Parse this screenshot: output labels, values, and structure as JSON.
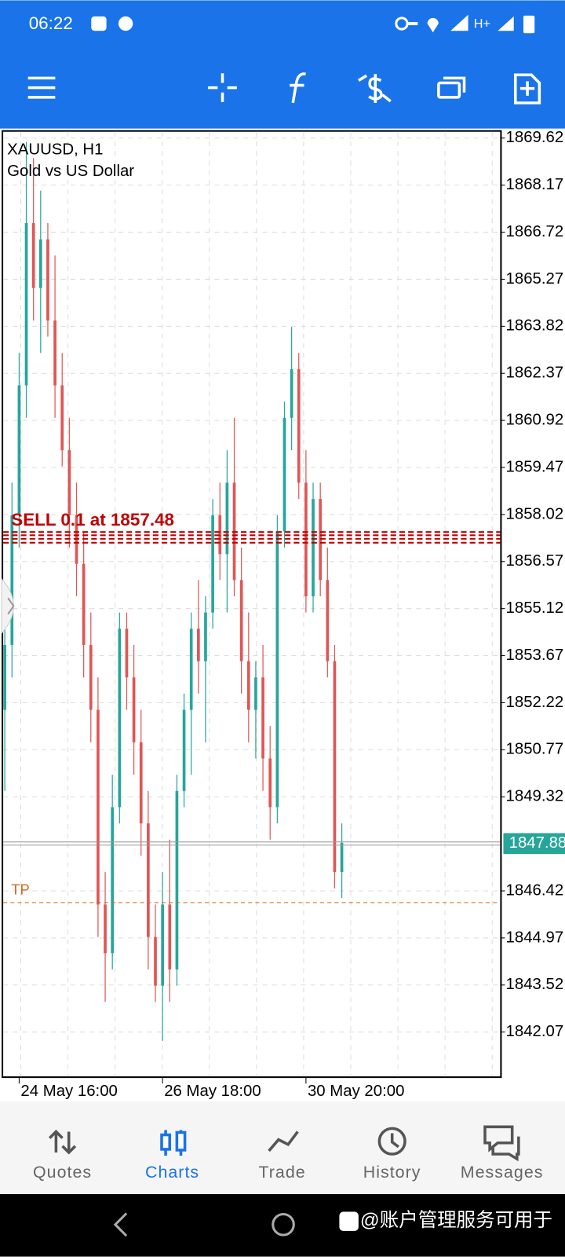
{
  "status_bar": {
    "time": "06:22",
    "network": "H+"
  },
  "chart_data": {
    "type": "candlestick",
    "title": "XAUUSD, H1",
    "subtitle": "Gold vs US Dollar",
    "categories": [
      null,
      null,
      "24 May 16:00",
      null,
      null,
      null,
      null,
      null,
      null,
      null,
      null,
      null,
      null,
      null,
      null,
      null,
      null,
      null,
      null,
      null,
      null,
      null,
      "26 May 18:00",
      null,
      null,
      null,
      null,
      null,
      null,
      null,
      null,
      null,
      null,
      null,
      null,
      null,
      null,
      null,
      null,
      null,
      null,
      null,
      "30 May 20:00",
      null,
      null,
      null,
      null,
      null
    ],
    "open": [
      1852,
      1854,
      1858,
      1862,
      1867,
      1865,
      1866.5,
      1864,
      1862,
      1860,
      1858,
      1856.5,
      1854,
      1852,
      1846,
      1844.5,
      1849,
      1854.5,
      1853,
      1851,
      1848.5,
      1845,
      1843.5,
      1846,
      1844,
      1849.5,
      1852,
      1854.5,
      1853.5,
      1855,
      1858,
      1856.8,
      1859,
      1856,
      1853.5,
      1852,
      1853,
      1850.5,
      1849,
      1857.5,
      1861,
      1862.5,
      1859,
      1855.5,
      1858.5,
      1856,
      1853.5,
      1847
    ],
    "high": [
      1855,
      1859,
      1863,
      1869.5,
      1869,
      1868,
      1867,
      1866,
      1863,
      1861,
      1859,
      1857.5,
      1855,
      1853,
      1847,
      1850,
      1855,
      1855,
      1854,
      1852,
      1849.5,
      1846,
      1847,
      1848,
      1850,
      1852.5,
      1855,
      1856,
      1855.5,
      1858.5,
      1859,
      1860,
      1861,
      1857,
      1855,
      1853.5,
      1854,
      1851.5,
      1858,
      1861.5,
      1863.8,
      1863,
      1860,
      1859,
      1859,
      1857,
      1854,
      1848.5
    ],
    "low": [
      1849.5,
      1853,
      1857,
      1861,
      1864,
      1863,
      1863.5,
      1861,
      1859.5,
      1857,
      1855.5,
      1853,
      1851,
      1845,
      1843,
      1844,
      1848.5,
      1852,
      1850,
      1847.5,
      1844,
      1843,
      1841.8,
      1843,
      1843.5,
      1849,
      1850,
      1852.5,
      1851,
      1854.5,
      1856,
      1855,
      1855.5,
      1852.5,
      1851,
      1850.5,
      1849.5,
      1848,
      1848.5,
      1857,
      1860,
      1858.5,
      1855,
      1855,
      1855.5,
      1853,
      1846.5,
      1846.2
    ],
    "close": [
      1854,
      1858,
      1862,
      1867,
      1865,
      1866.5,
      1864,
      1862,
      1860,
      1858,
      1856.5,
      1854,
      1852,
      1846,
      1844.5,
      1849,
      1854.5,
      1853,
      1851,
      1848.5,
      1845,
      1843.5,
      1846,
      1844,
      1849.5,
      1852,
      1854.5,
      1853.5,
      1855,
      1858,
      1856.8,
      1859,
      1856,
      1853.5,
      1852,
      1853,
      1850.5,
      1849,
      1857.5,
      1861,
      1862.5,
      1859,
      1855.5,
      1858.5,
      1856,
      1853.5,
      1847,
      1847.9
    ],
    "up_color": "#26a69a",
    "down_color": "#e05555",
    "ylim": [
      1840.68,
      1869.84
    ],
    "yticks": [
      1869.62,
      1868.17,
      1866.72,
      1865.27,
      1863.82,
      1862.37,
      1860.92,
      1859.47,
      1858.02,
      1856.57,
      1855.12,
      1853.67,
      1852.22,
      1850.77,
      1849.32,
      1846.42,
      1844.97,
      1843.52,
      1842.07
    ],
    "grid": true,
    "current_price": 1847.88,
    "order": {
      "label": "SELL 0.1 at 1857.48",
      "levels": [
        1857.48,
        1857.38,
        1857.27,
        1857.15
      ]
    },
    "take_profit": {
      "label": "TP",
      "price": 1846.06
    }
  },
  "nav": {
    "items": [
      "Quotes",
      "Charts",
      "Trade",
      "History",
      "Messages"
    ],
    "active": 1
  },
  "system_bar": {
    "watermark": "@账户管理服务可用于"
  }
}
